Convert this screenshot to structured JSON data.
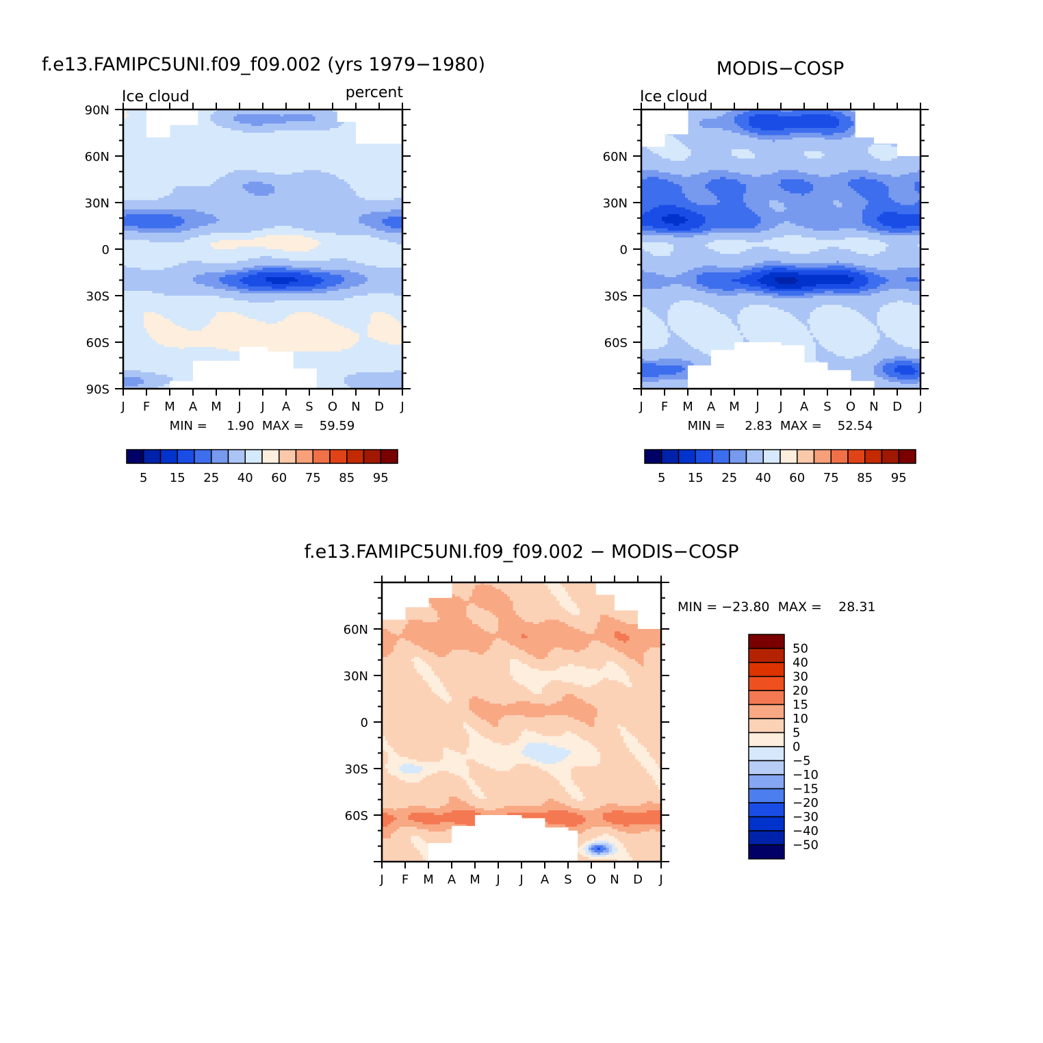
{
  "colors": {
    "seq": [
      "#000066",
      "#0022aa",
      "#0033cc",
      "#1a4de6",
      "#3d6eee",
      "#7799ee",
      "#aac4f5",
      "#d6e8fb",
      "#fdeedd",
      "#fbc8aa",
      "#f7a07a",
      "#f07048",
      "#e04416",
      "#c42a00",
      "#a01800",
      "#7a0000"
    ],
    "div": [
      "#000066",
      "#0022aa",
      "#0033cc",
      "#1a4de6",
      "#4d7ef0",
      "#85a6f2",
      "#b8cdf6",
      "#d6e8fb",
      "#fdeedd",
      "#fcd2b7",
      "#f9a884",
      "#f47852",
      "#ef5020",
      "#dd3300",
      "#b52200",
      "#7a0000"
    ]
  },
  "chart_data": [
    {
      "id": "model",
      "type": "heatmap",
      "title": "f.e13.FAMIPC5UNI.f09_f09.002 (yrs 1979−1980)",
      "left_label": "Ice cloud",
      "right_label": "percent",
      "x_ticks": [
        "J",
        "F",
        "M",
        "A",
        "M",
        "J",
        "J",
        "A",
        "S",
        "O",
        "N",
        "D",
        "J"
      ],
      "y_ticks": [
        "90N",
        "60N",
        "30N",
        "0",
        "30S",
        "60S",
        "90S"
      ],
      "ylim": [
        -90,
        90
      ],
      "stats": "MIN =     1.90  MAX =    59.59",
      "min": 1.9,
      "max": 59.59,
      "colorbar_labels": [
        "5",
        "15",
        "25",
        "40",
        "60",
        "75",
        "85",
        "95"
      ],
      "colorbar_levels": [
        5,
        10,
        15,
        20,
        25,
        30,
        40,
        50,
        60,
        70,
        75,
        80,
        85,
        90,
        95
      ]
    },
    {
      "id": "obs",
      "type": "heatmap",
      "title": "MODIS−COSP",
      "left_label": "Ice cloud",
      "right_label": "",
      "x_ticks": [
        "J",
        "F",
        "M",
        "A",
        "M",
        "J",
        "J",
        "A",
        "S",
        "O",
        "N",
        "D",
        "J"
      ],
      "y_ticks": [
        "60N",
        "30N",
        "0",
        "30S",
        "60S"
      ],
      "ylim": [
        -90,
        90
      ],
      "stats": "MIN =     2.83  MAX =    52.54",
      "min": 2.83,
      "max": 52.54,
      "colorbar_labels": [
        "5",
        "15",
        "25",
        "40",
        "60",
        "75",
        "85",
        "95"
      ],
      "colorbar_levels": [
        5,
        10,
        15,
        20,
        25,
        30,
        40,
        50,
        60,
        70,
        75,
        80,
        85,
        90,
        95
      ]
    },
    {
      "id": "diff",
      "type": "heatmap",
      "title": "f.e13.FAMIPC5UNI.f09_f09.002  −  MODIS−COSP",
      "x_ticks": [
        "J",
        "F",
        "M",
        "A",
        "M",
        "J",
        "J",
        "A",
        "S",
        "O",
        "N",
        "D",
        "J"
      ],
      "y_ticks": [
        "60N",
        "30N",
        "0",
        "30S",
        "60S"
      ],
      "ylim": [
        -90,
        90
      ],
      "stats": "MIN = −23.80  MAX =    28.31",
      "min": -23.8,
      "max": 28.31,
      "colorbar_labels": [
        "50",
        "40",
        "30",
        "20",
        "15",
        "10",
        "5",
        "0",
        "−5",
        "−10",
        "−15",
        "−20",
        "−30",
        "−40",
        "−50"
      ],
      "colorbar_levels": [
        -50,
        -40,
        -30,
        -20,
        -15,
        -10,
        -5,
        0,
        5,
        10,
        15,
        20,
        30,
        40,
        50
      ]
    }
  ]
}
